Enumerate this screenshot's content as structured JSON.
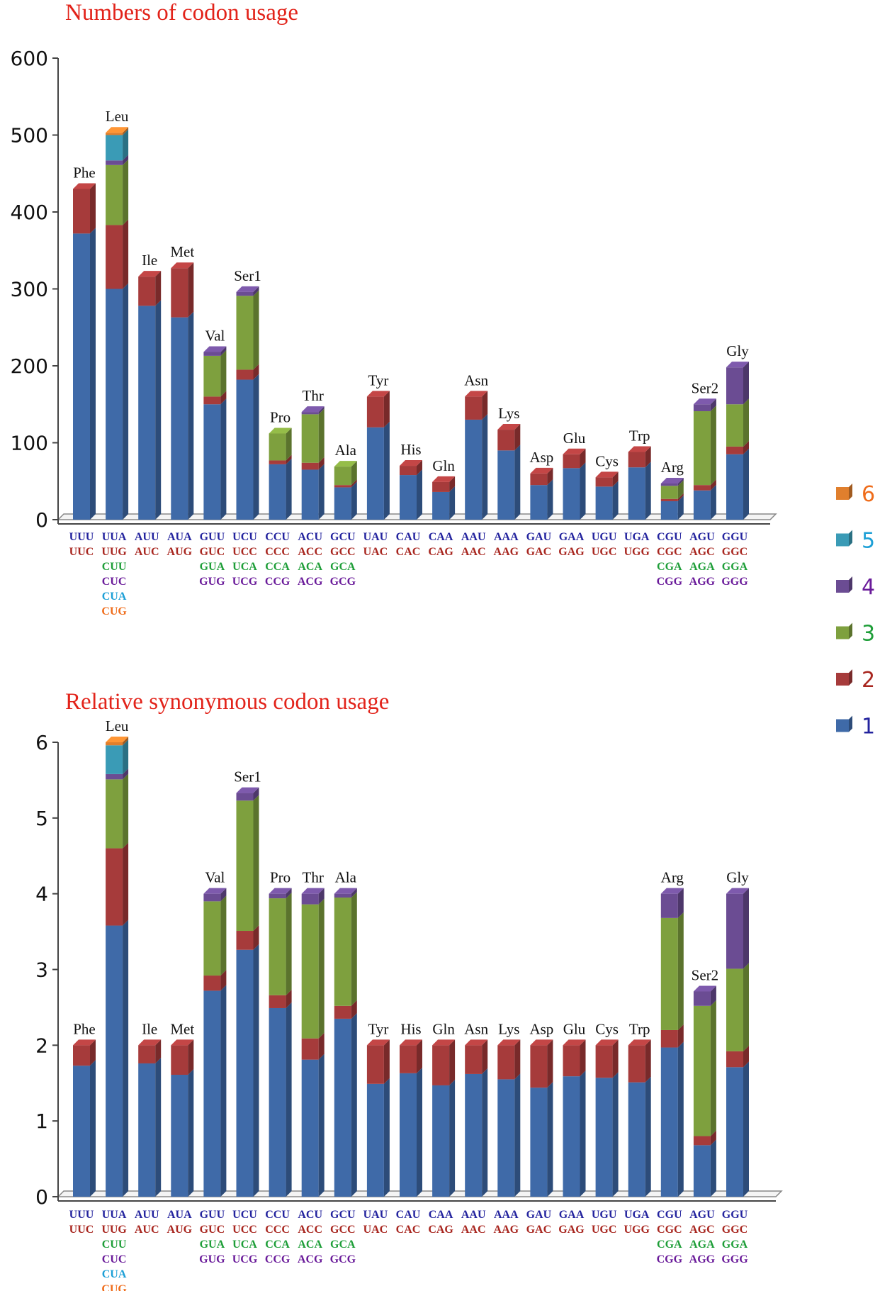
{
  "colors": {
    "1": "#3f6aa8",
    "2": "#a63b3b",
    "3": "#7ea03e",
    "4": "#6b4c93",
    "5": "#3a9bb6",
    "6": "#e07f2d"
  },
  "codon_text_colors": [
    "#23239e",
    "#a8261f",
    "#1e9e38",
    "#6a1b9a",
    "#1c9fd6",
    "#ef6c1a"
  ],
  "legend": [
    {
      "label": "6",
      "color": "#e07f2d",
      "text_color": "#ef6c1a"
    },
    {
      "label": "5",
      "color": "#3a9bb6",
      "text_color": "#1c9fd6"
    },
    {
      "label": "4",
      "color": "#6b4c93",
      "text_color": "#6a1b9a"
    },
    {
      "label": "3",
      "color": "#7ea03e",
      "text_color": "#1e9e38"
    },
    {
      "label": "2",
      "color": "#a63b3b",
      "text_color": "#a8261f"
    },
    {
      "label": "1",
      "color": "#3f6aa8",
      "text_color": "#23239e"
    }
  ],
  "codons": [
    [
      "UUU",
      "UUC"
    ],
    [
      "UUA",
      "UUG",
      "CUU",
      "CUC",
      "CUA",
      "CUG"
    ],
    [
      "AUU",
      "AUC"
    ],
    [
      "AUA",
      "AUG"
    ],
    [
      "GUU",
      "GUC",
      "GUA",
      "GUG"
    ],
    [
      "UCU",
      "UCC",
      "UCA",
      "UCG"
    ],
    [
      "CCU",
      "CCC",
      "CCA",
      "CCG"
    ],
    [
      "ACU",
      "ACC",
      "ACA",
      "ACG"
    ],
    [
      "GCU",
      "GCC",
      "GCA",
      "GCG"
    ],
    [
      "UAU",
      "UAC"
    ],
    [
      "CAU",
      "CAC"
    ],
    [
      "CAA",
      "CAG"
    ],
    [
      "AAU",
      "AAC"
    ],
    [
      "AAA",
      "AAG"
    ],
    [
      "GAU",
      "GAC"
    ],
    [
      "GAA",
      "GAG"
    ],
    [
      "UGU",
      "UGC"
    ],
    [
      "UGA",
      "UGG"
    ],
    [
      "CGU",
      "CGC",
      "CGA",
      "CGG"
    ],
    [
      "AGU",
      "AGC",
      "AGA",
      "AGG"
    ],
    [
      "GGU",
      "GGC",
      "GGA",
      "GGG"
    ]
  ],
  "chart_data": [
    {
      "type": "bar",
      "stacked": true,
      "title": "Numbers of codon usage",
      "ylim": [
        0,
        600
      ],
      "yticks": [
        "0",
        "100",
        "200",
        "300",
        "400",
        "500",
        "600"
      ],
      "categories": [
        "Phe",
        "Leu",
        "Ile",
        "Met",
        "Val",
        "Ser1",
        "Pro",
        "Thr",
        "Ala",
        "Tyr",
        "His",
        "Gln",
        "Asn",
        "Lys",
        "Asp",
        "Glu",
        "Cys",
        "Trp",
        "Arg",
        "Ser2",
        "Gly"
      ],
      "series": [
        {
          "name": "1",
          "values": [
            372,
            300,
            278,
            263,
            150,
            182,
            72,
            65,
            42,
            120,
            58,
            36,
            130,
            90,
            45,
            67,
            43,
            68,
            24,
            38,
            85
          ]
        },
        {
          "name": "2",
          "values": [
            58,
            83,
            38,
            64,
            10,
            13,
            5,
            9,
            3,
            40,
            12,
            13,
            30,
            27,
            15,
            18,
            12,
            20,
            3,
            7,
            10
          ]
        },
        {
          "name": "3",
          "values": [
            0,
            78,
            0,
            0,
            53,
            96,
            35,
            63,
            24,
            0,
            0,
            0,
            0,
            0,
            0,
            0,
            0,
            0,
            17,
            96,
            55
          ]
        },
        {
          "name": "4",
          "values": [
            0,
            6,
            0,
            0,
            5,
            5,
            0,
            3,
            0,
            0,
            0,
            0,
            0,
            0,
            0,
            0,
            0,
            0,
            3,
            9,
            48
          ]
        },
        {
          "name": "5",
          "values": [
            0,
            33,
            0,
            0,
            0,
            0,
            0,
            0,
            0,
            0,
            0,
            0,
            0,
            0,
            0,
            0,
            0,
            0,
            0,
            0,
            0
          ]
        },
        {
          "name": "6",
          "values": [
            0,
            3,
            0,
            0,
            0,
            0,
            0,
            0,
            0,
            0,
            0,
            0,
            0,
            0,
            0,
            0,
            0,
            0,
            0,
            0,
            0
          ]
        }
      ]
    },
    {
      "type": "bar",
      "stacked": true,
      "title": "Relative synonymous codon usage",
      "ylim": [
        0,
        6
      ],
      "yticks": [
        "0",
        "1",
        "2",
        "3",
        "4",
        "5",
        "6"
      ],
      "categories": [
        "Phe",
        "Leu",
        "Ile",
        "Met",
        "Val",
        "Ser1",
        "Pro",
        "Thr",
        "Ala",
        "Tyr",
        "His",
        "Gln",
        "Asn",
        "Lys",
        "Asp",
        "Glu",
        "Cys",
        "Trp",
        "Arg",
        "Ser2",
        "Gly"
      ],
      "series": [
        {
          "name": "1",
          "values": [
            1.73,
            3.58,
            1.76,
            1.61,
            2.72,
            3.26,
            2.49,
            1.81,
            2.35,
            1.49,
            1.63,
            1.47,
            1.62,
            1.55,
            1.44,
            1.59,
            1.57,
            1.51,
            1.97,
            0.68,
            1.71
          ]
        },
        {
          "name": "2",
          "values": [
            0.27,
            1.02,
            0.24,
            0.39,
            0.2,
            0.25,
            0.17,
            0.28,
            0.17,
            0.51,
            0.37,
            0.53,
            0.38,
            0.45,
            0.56,
            0.41,
            0.43,
            0.49,
            0.23,
            0.12,
            0.21
          ]
        },
        {
          "name": "3",
          "values": [
            0,
            0.91,
            0,
            0,
            0.98,
            1.72,
            1.28,
            1.77,
            1.43,
            0,
            0,
            0,
            0,
            0,
            0,
            0,
            0,
            0,
            1.48,
            1.72,
            1.09
          ]
        },
        {
          "name": "4",
          "values": [
            0,
            0.07,
            0,
            0,
            0.1,
            0.1,
            0.06,
            0.14,
            0.05,
            0,
            0,
            0,
            0,
            0,
            0,
            0,
            0,
            0,
            0.32,
            0.19,
            0.99
          ]
        },
        {
          "name": "5",
          "values": [
            0,
            0.38,
            0,
            0,
            0,
            0,
            0,
            0,
            0,
            0,
            0,
            0,
            0,
            0,
            0,
            0,
            0,
            0,
            0,
            0,
            0
          ]
        },
        {
          "name": "6",
          "values": [
            0,
            0.04,
            0,
            0,
            0,
            0,
            0,
            0,
            0,
            0,
            0,
            0,
            0,
            0,
            0,
            0,
            0,
            0,
            0,
            0,
            0
          ]
        }
      ]
    }
  ]
}
